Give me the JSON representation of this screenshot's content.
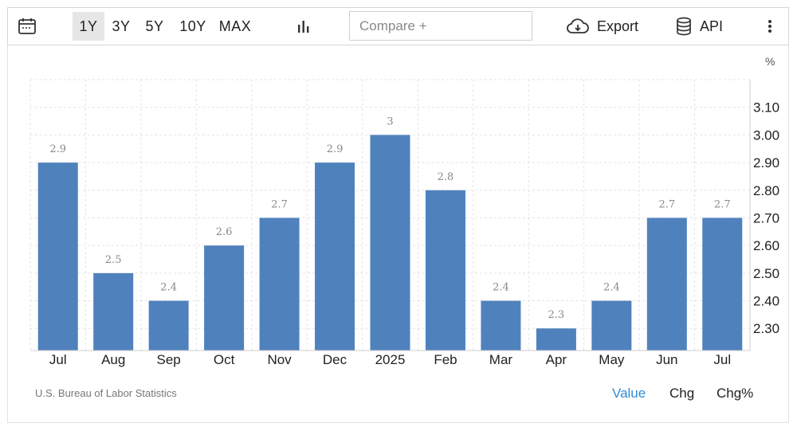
{
  "toolbar": {
    "ranges": [
      "1Y",
      "3Y",
      "5Y",
      "10Y",
      "MAX"
    ],
    "active_range": "1Y",
    "compare_placeholder": "Compare +",
    "export_label": "Export",
    "api_label": "API"
  },
  "chart_data": {
    "type": "bar",
    "categories": [
      "Jul",
      "Aug",
      "Sep",
      "Oct",
      "Nov",
      "Dec",
      "2025",
      "Feb",
      "Mar",
      "Apr",
      "May",
      "Jun",
      "Jul"
    ],
    "values": [
      2.9,
      2.5,
      2.4,
      2.6,
      2.7,
      2.9,
      3,
      2.8,
      2.4,
      2.3,
      2.4,
      2.7,
      2.7
    ],
    "data_labels": [
      "2.9",
      "2.5",
      "2.4",
      "2.6",
      "2.7",
      "2.9",
      "3",
      "2.8",
      "2.4",
      "2.3",
      "2.4",
      "2.7",
      "2.7"
    ],
    "y_ticks": [
      "2.30",
      "2.40",
      "2.50",
      "2.60",
      "2.70",
      "2.80",
      "2.90",
      "3.00",
      "3.10"
    ],
    "ylim": [
      2.22,
      3.2
    ],
    "unit": "%",
    "axis_side": "right",
    "grid": true,
    "bar_color": "#4f81bd"
  },
  "footer": {
    "source": "U.S. Bureau of Labor Statistics",
    "value_tabs": [
      "Value",
      "Chg",
      "Chg%"
    ],
    "active_tab": "Value",
    "active_color": "#2f8bd6"
  }
}
